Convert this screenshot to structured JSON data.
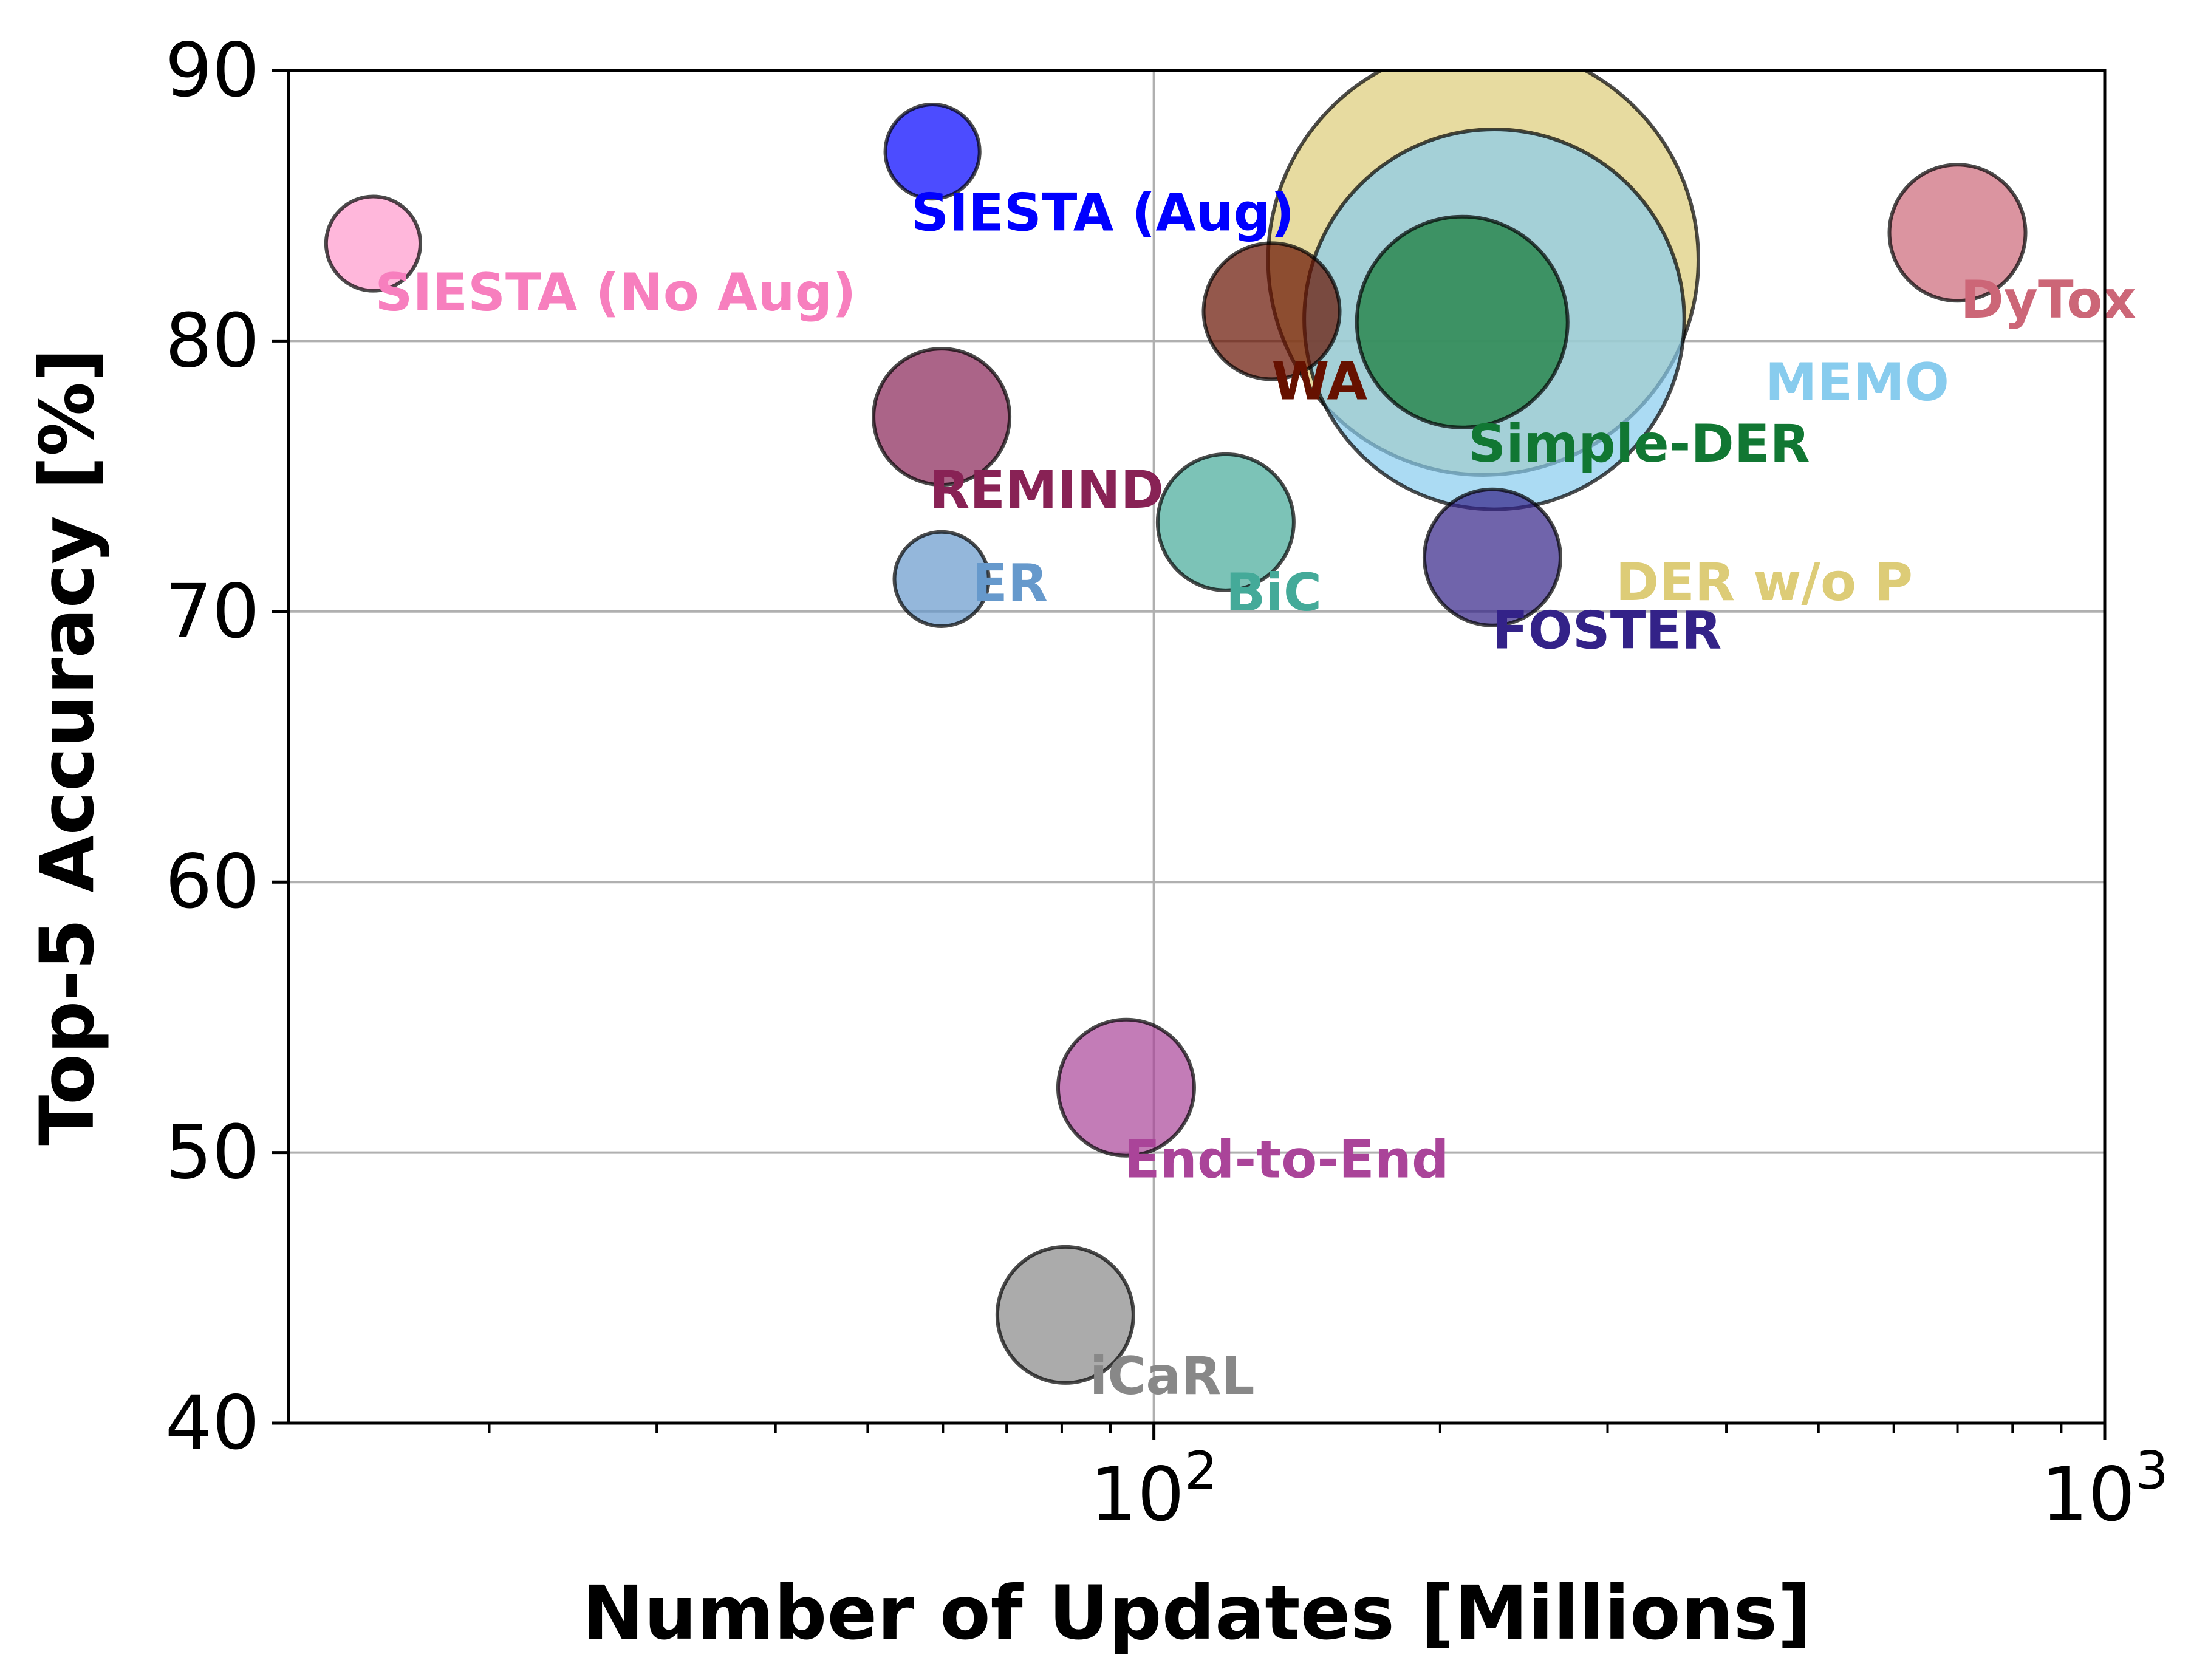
{
  "chart_data": {
    "type": "scatter",
    "title": "",
    "xlabel": "Number of Updates [Millions]",
    "ylabel": "Top-5 Accuracy [%]",
    "xscale": "log",
    "xlim": [
      12.3,
      1000
    ],
    "ylim": [
      40,
      90
    ],
    "grid": true,
    "xticks": [
      {
        "value": 100,
        "base": "10",
        "exp": "2"
      },
      {
        "value": 1000,
        "base": "10",
        "exp": "3"
      }
    ],
    "yticks": [
      40,
      50,
      60,
      70,
      80,
      90
    ],
    "series": [
      {
        "name": "DER w/o P",
        "x": 222,
        "y": 83.0,
        "size": 1000,
        "color": "#ddcc77",
        "label_color": "#ddcc77"
      },
      {
        "name": "MEMO",
        "x": 228,
        "y": 80.8,
        "size": 780,
        "color": "#88ccee",
        "label_color": "#88ccee"
      },
      {
        "name": "Simple-DER",
        "x": 211,
        "y": 80.7,
        "size": 240,
        "color": "#117733",
        "label_color": "#117733"
      },
      {
        "name": "SIESTA (Aug)",
        "x": 58.5,
        "y": 87.0,
        "size": 48,
        "color": "#0000ff",
        "label_color": "#0000ff"
      },
      {
        "name": "SIESTA (No Aug)",
        "x": 15.1,
        "y": 83.6,
        "size": 48,
        "color": "#ff99cc",
        "label_color": "#f77fbe"
      },
      {
        "name": "DyTox",
        "x": 700,
        "y": 84.0,
        "size": 100,
        "color": "#cc6677",
        "label_color": "#cc6677"
      },
      {
        "name": "WA",
        "x": 133,
        "y": 81.1,
        "size": 100,
        "color": "#661100",
        "label_color": "#661100"
      },
      {
        "name": "REMIND",
        "x": 59.8,
        "y": 77.2,
        "size": 100,
        "color": "#882255",
        "label_color": "#882255"
      },
      {
        "name": "BiC",
        "x": 119,
        "y": 73.3,
        "size": 100,
        "color": "#44aa99",
        "label_color": "#44aa99"
      },
      {
        "name": "ER",
        "x": 59.8,
        "y": 71.2,
        "size": 48,
        "color": "#6699cc",
        "label_color": "#6699cc"
      },
      {
        "name": "FOSTER",
        "x": 227,
        "y": 72.0,
        "size": 100,
        "color": "#332288",
        "label_color": "#332288"
      },
      {
        "name": "End-to-End",
        "x": 93.5,
        "y": 52.4,
        "size": 100,
        "color": "#aa4499",
        "label_color": "#aa4499"
      },
      {
        "name": "iCaRL",
        "x": 80.7,
        "y": 44.0,
        "size": 100,
        "color": "#888888",
        "label_color": "#888888"
      }
    ]
  }
}
